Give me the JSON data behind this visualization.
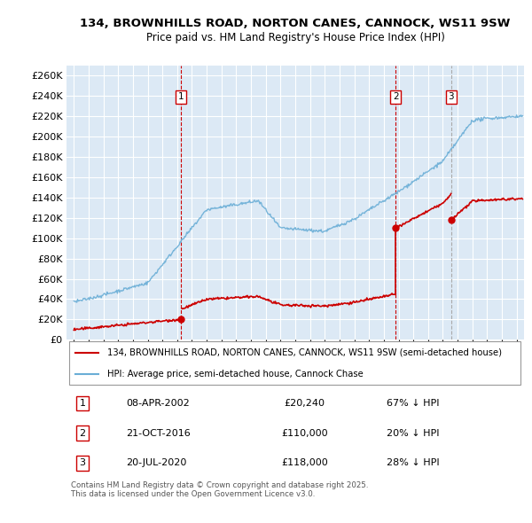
{
  "title": "134, BROWNHILLS ROAD, NORTON CANES, CANNOCK, WS11 9SW",
  "subtitle": "Price paid vs. HM Land Registry's House Price Index (HPI)",
  "background_color": "#ffffff",
  "plot_background": "#dce9f5",
  "grid_color": "#ffffff",
  "legend_line1": "134, BROWNHILLS ROAD, NORTON CANES, CANNOCK, WS11 9SW (semi-detached house)",
  "legend_line2": "HPI: Average price, semi-detached house, Cannock Chase",
  "footer": "Contains HM Land Registry data © Crown copyright and database right 2025.\nThis data is licensed under the Open Government Licence v3.0.",
  "sale_markers": [
    {
      "label": "1",
      "date": "08-APR-2002",
      "price": 20240,
      "price_str": "£20,240",
      "pct": "67% ↓ HPI",
      "x_year": 2002.27,
      "line_style": "--",
      "line_color": "#cc0000"
    },
    {
      "label": "2",
      "date": "21-OCT-2016",
      "price": 110000,
      "price_str": "£110,000",
      "pct": "20% ↓ HPI",
      "x_year": 2016.8,
      "line_style": "--",
      "line_color": "#cc0000"
    },
    {
      "label": "3",
      "date": "20-JUL-2020",
      "price": 118000,
      "price_str": "£118,000",
      "pct": "28% ↓ HPI",
      "x_year": 2020.55,
      "line_style": "--",
      "line_color": "#aaaaaa"
    }
  ],
  "hpi_color": "#6aaed6",
  "price_color": "#cc0000",
  "ylim": [
    0,
    270000
  ],
  "yticks": [
    0,
    20000,
    40000,
    60000,
    80000,
    100000,
    120000,
    140000,
    160000,
    180000,
    200000,
    220000,
    240000,
    260000
  ],
  "xlim_start": 1994.5,
  "xlim_end": 2025.5,
  "figsize": [
    6.0,
    5.9
  ],
  "dpi": 100
}
